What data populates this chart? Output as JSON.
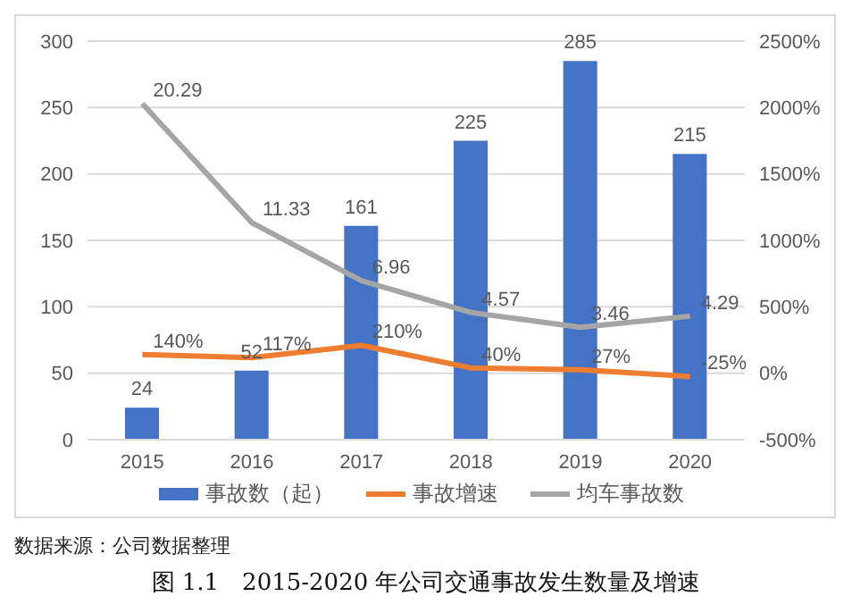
{
  "chart_data": {
    "type": "bar",
    "title": "图 1.1　2015-2020 年公司交通事故发生数量及增速",
    "annotations": [
      "数据来源：公司数据整理"
    ],
    "categories": [
      "2015",
      "2016",
      "2017",
      "2018",
      "2019",
      "2020"
    ],
    "series": [
      {
        "name": "事故数（起）",
        "color": "#4472c4",
        "values": [
          24,
          52,
          161,
          225,
          285,
          215
        ],
        "value_labels": [
          "24",
          "52",
          "161",
          "225",
          "285",
          "215"
        ]
      },
      {
        "name": "事故增速",
        "type": "line",
        "axis": "y2",
        "color": "#ed7d31",
        "values": [
          1.4,
          1.17,
          2.1,
          0.4,
          0.27,
          -0.25
        ],
        "value_labels": [
          "140%",
          "117%",
          "210%",
          "40%",
          "27%",
          "-25%"
        ]
      },
      {
        "name": "均车事故数",
        "type": "line",
        "axis": "y2",
        "color": "#a5a5a5",
        "values": [
          20.29,
          11.33,
          6.96,
          4.57,
          3.46,
          4.29
        ],
        "value_labels": [
          "20.29",
          "11.33",
          "6.96",
          "4.57",
          "3.46",
          "4.29"
        ]
      }
    ],
    "ylim": [
      0,
      300
    ],
    "yticks": [
      0,
      50,
      100,
      150,
      200,
      250,
      300
    ],
    "y2lim": [
      -5,
      25
    ],
    "y2ticks": [
      {
        "value": -5,
        "label": "-500%"
      },
      {
        "value": 0,
        "label": "0%"
      },
      {
        "value": 5,
        "label": "500%"
      },
      {
        "value": 10,
        "label": "1000%"
      },
      {
        "value": 15,
        "label": "1500%"
      },
      {
        "value": 20,
        "label": "2000%"
      },
      {
        "value": 25,
        "label": "2500%"
      }
    ],
    "grid": "y",
    "legend": "bottom",
    "marker": "none",
    "line_style": "solid"
  }
}
